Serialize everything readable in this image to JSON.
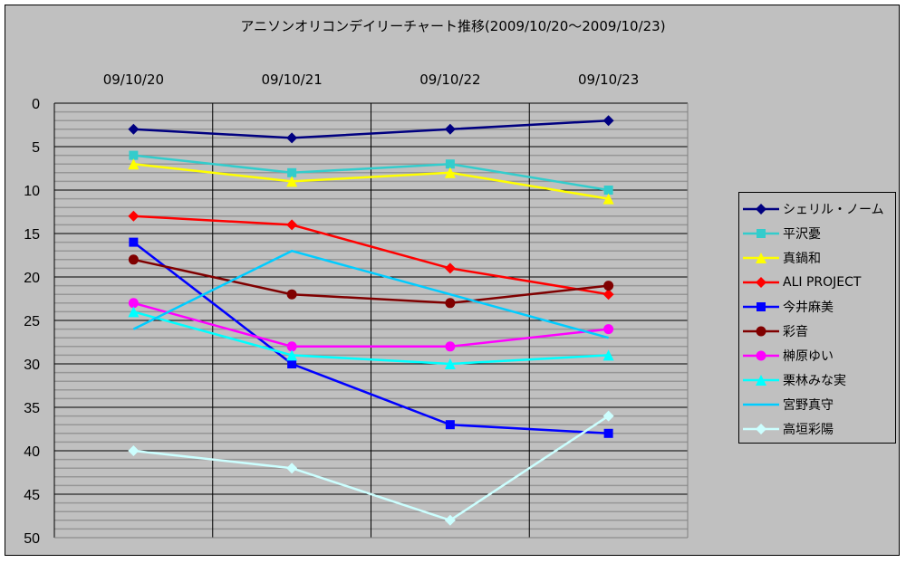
{
  "chart_data": {
    "type": "line",
    "title": "アニソンオリコンデイリーチャート推移(2009/10/20～2009/10/23)",
    "xlabel": "",
    "ylabel": "",
    "categories": [
      "09/10/20",
      "09/10/21",
      "09/10/22",
      "09/10/23"
    ],
    "x_axis_position": "top",
    "y_reversed": true,
    "ylim": [
      0,
      50
    ],
    "y_ticks": [
      0,
      5,
      10,
      15,
      20,
      25,
      30,
      35,
      40,
      45,
      50
    ],
    "grid": {
      "major_y": 5,
      "minor_y": 1,
      "vertical_category_lines": true
    },
    "legend_position": "right",
    "series": [
      {
        "name": "シェリル・ノーム",
        "color": "#000080",
        "marker": "diamond",
        "values": [
          3,
          4,
          3,
          2
        ]
      },
      {
        "name": "平沢憂",
        "color": "#33cccc",
        "marker": "square",
        "values": [
          6,
          8,
          7,
          10
        ]
      },
      {
        "name": "真鍋和",
        "color": "#ffff00",
        "marker": "triangle",
        "values": [
          7,
          9,
          8,
          11
        ]
      },
      {
        "name": "ALI PROJECT",
        "color": "#ff0000",
        "marker": "diamond",
        "values": [
          13,
          14,
          19,
          22
        ]
      },
      {
        "name": "今井麻美",
        "color": "#0000ff",
        "marker": "square",
        "values": [
          16,
          30,
          37,
          38
        ]
      },
      {
        "name": "彩音",
        "color": "#800000",
        "marker": "circle",
        "values": [
          18,
          22,
          23,
          21
        ]
      },
      {
        "name": "榊原ゆい",
        "color": "#ff00ff",
        "marker": "circle",
        "values": [
          23,
          28,
          28,
          26
        ]
      },
      {
        "name": "栗林みな実",
        "color": "#00ffff",
        "marker": "triangle",
        "values": [
          24,
          29,
          30,
          29
        ]
      },
      {
        "name": "宮野真守",
        "color": "#00ccff",
        "marker": "none",
        "values": [
          26,
          17,
          22,
          27
        ]
      },
      {
        "name": "高垣彩陽",
        "color": "#ccffff",
        "marker": "diamond",
        "values": [
          40,
          42,
          48,
          36
        ]
      }
    ]
  }
}
